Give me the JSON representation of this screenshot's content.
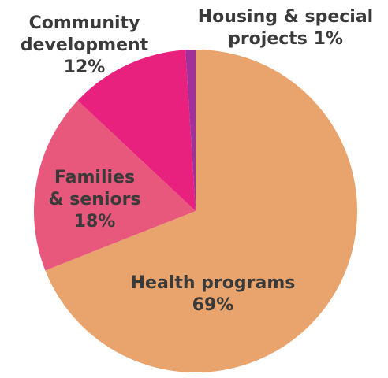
{
  "chart_data": {
    "type": "pie",
    "start": "12 o'clock",
    "direction": "clockwise",
    "slices": [
      {
        "label_lines": [
          "Health programs",
          "69%"
        ],
        "value": 69,
        "color": "#e8a46c"
      },
      {
        "label_lines": [
          "Families",
          "& seniors",
          "18%"
        ],
        "value": 18,
        "color": "#e8587c"
      },
      {
        "label_lines": [
          "Community",
          "development",
          "12%"
        ],
        "value": 12,
        "color": "#e8207e"
      },
      {
        "label_lines": [
          "Housing & special",
          "projects 1%"
        ],
        "value": 1,
        "color": "#a0309a"
      }
    ]
  }
}
